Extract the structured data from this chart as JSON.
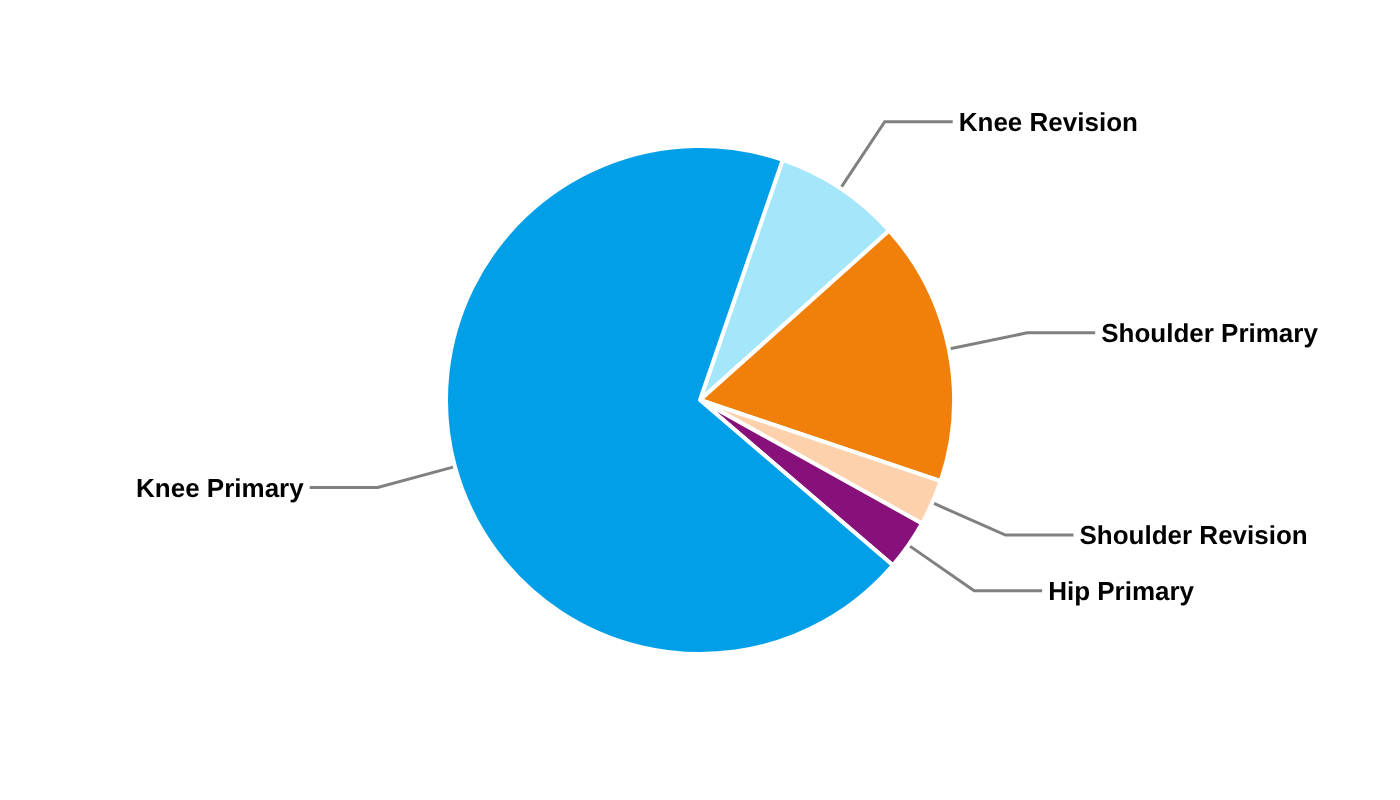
{
  "chart_data": {
    "type": "pie",
    "categories": [
      "Knee Revision",
      "Shoulder Primary",
      "Shoulder Revision",
      "Hip Primary",
      "Knee Primary"
    ],
    "values": [
      8.1,
      16.8,
      2.9,
      3.2,
      69.0
    ],
    "colors": [
      "#a4e6fa",
      "#f0800a",
      "#fdd1ac",
      "#87107a",
      "#009fe8"
    ]
  }
}
